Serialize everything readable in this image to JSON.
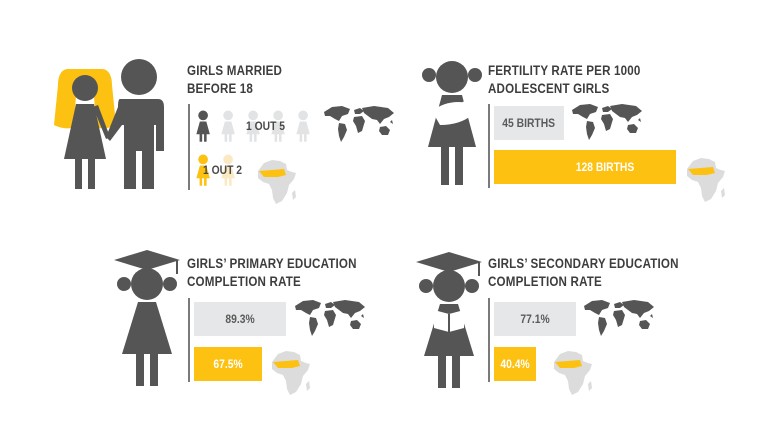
{
  "colors": {
    "dark": "#555555",
    "gray": "#e6e7e8",
    "yellow": "#fcc111",
    "map_world": "#555555",
    "map_africa": "#dcdcdc"
  },
  "panels": {
    "married": {
      "title_line1": "GIRLS MARRIED",
      "title_line2": "BEFORE 18",
      "world_label": "1 OUT 5",
      "africa_label": "1 OUT 2",
      "world_ratio": 0.2,
      "africa_ratio": 0.5
    },
    "fertility": {
      "title_line1": "FERTILITY RATE PER 1000",
      "title_line2": "ADOLESCENT GIRLS",
      "world_value": "45 BIRTHS",
      "africa_value": "128 BIRTHS",
      "world_number": 45,
      "africa_number": 128
    },
    "primary": {
      "title_line1": "GIRLS’ PRIMARY EDUCATION",
      "title_line2": "COMPLETION RATE",
      "world_value": "89.3%",
      "africa_value": "67.5%",
      "world_number": 89.3,
      "africa_number": 67.5
    },
    "secondary": {
      "title_line1": "GIRLS’ SECONDARY EDUCATION",
      "title_line2": "COMPLETION RATE",
      "world_value": "77.1%",
      "africa_value": "40.4%",
      "world_number": 77.1,
      "africa_number": 40.4
    }
  },
  "icons": {
    "couple": "bride-and-groom-icon",
    "mother": "girl-holding-baby-icon",
    "graduate": "girl-graduate-icon",
    "reader": "girl-graduate-reading-icon",
    "world_map": "world-map-icon",
    "africa_map": "africa-map-icon"
  }
}
